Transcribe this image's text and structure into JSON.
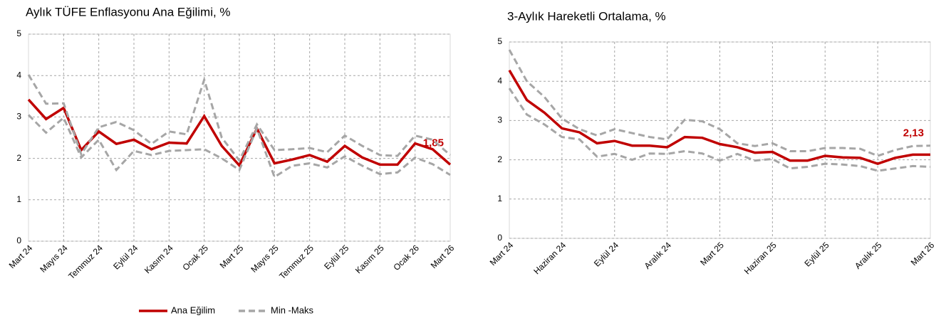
{
  "chart_data": [
    {
      "type": "line",
      "title": "Aylık TÜFE Enflasyonu Ana Eğilimi, %",
      "categories": [
        "Mart 24",
        null,
        "Mayıs 24",
        null,
        "Temmuz 24",
        null,
        "Eylül 24",
        null,
        "Kasım 24",
        null,
        "Ocak 25",
        null,
        "Mart 25",
        null,
        "Mayıs 25",
        null,
        "Temmuz 25",
        null,
        "Eylül 25",
        null,
        "Kasım 25",
        null,
        "Ocak 26",
        null,
        "Mart 26"
      ],
      "ylim": [
        0,
        5
      ],
      "yticks": [
        0,
        1,
        2,
        3,
        4,
        5
      ],
      "grid": true,
      "series": [
        {
          "color": "#c00000",
          "values": [
            3.42,
            2.95,
            3.22,
            2.2,
            2.65,
            2.35,
            2.45,
            2.22,
            2.38,
            2.36,
            3.02,
            2.3,
            1.83,
            2.72,
            1.88,
            1.97,
            2.08,
            1.92,
            2.3,
            2.02,
            1.85,
            1.85,
            2.36,
            2.22,
            1.85
          ],
          "value_labels": [
            null,
            null,
            null,
            null,
            null,
            null,
            null,
            null,
            null,
            null,
            null,
            null,
            null,
            null,
            null,
            null,
            null,
            null,
            null,
            null,
            null,
            null,
            null,
            null,
            "1,85"
          ]
        },
        {
          "color": "#a6a6a6",
          "dashed": true,
          "values": [
            4.02,
            3.32,
            3.33,
            2.1,
            2.75,
            2.88,
            2.68,
            2.35,
            2.65,
            2.58,
            3.9,
            2.5,
            1.95,
            2.82,
            2.2,
            2.22,
            2.25,
            2.15,
            2.55,
            2.3,
            2.08,
            2.06,
            2.55,
            2.45,
            2.08
          ]
        },
        {
          "color": "#a6a6a6",
          "dashed": true,
          "values": [
            3.05,
            2.62,
            2.98,
            2.02,
            2.45,
            1.72,
            2.18,
            2.08,
            2.18,
            2.2,
            2.22,
            2.0,
            1.72,
            2.72,
            1.55,
            1.82,
            1.88,
            1.78,
            2.05,
            1.82,
            1.62,
            1.66,
            2.02,
            1.86,
            1.6
          ]
        }
      ]
    },
    {
      "type": "line",
      "title": "3-Aylık Hareketli Ortalama, %",
      "categories": [
        "Mart 24",
        null,
        null,
        "Haziran 24",
        null,
        null,
        "Eylül 24",
        null,
        null,
        "Aralık 24",
        null,
        null,
        "Mart 25",
        null,
        null,
        "Haziran 25",
        null,
        null,
        "Eylül 25",
        null,
        null,
        "Aralık 25",
        null,
        null,
        "Mart 26"
      ],
      "ylim": [
        0,
        5
      ],
      "yticks": [
        0,
        1,
        2,
        3,
        4,
        5
      ],
      "grid": true,
      "series": [
        {
          "color": "#c00000",
          "values": [
            4.28,
            3.52,
            3.2,
            2.8,
            2.7,
            2.42,
            2.48,
            2.36,
            2.36,
            2.32,
            2.58,
            2.56,
            2.4,
            2.32,
            2.18,
            2.2,
            1.98,
            1.98,
            2.1,
            2.06,
            2.05,
            1.9,
            2.05,
            2.13,
            2.13
          ],
          "value_labels": [
            null,
            null,
            null,
            null,
            null,
            null,
            null,
            null,
            null,
            null,
            null,
            null,
            null,
            null,
            null,
            null,
            null,
            null,
            null,
            null,
            null,
            null,
            null,
            null,
            "2,13"
          ]
        },
        {
          "color": "#a6a6a6",
          "dashed": true,
          "values": [
            4.8,
            4.0,
            3.6,
            3.05,
            2.78,
            2.62,
            2.78,
            2.68,
            2.58,
            2.52,
            3.02,
            2.98,
            2.78,
            2.42,
            2.35,
            2.42,
            2.22,
            2.22,
            2.3,
            2.3,
            2.28,
            2.1,
            2.25,
            2.35,
            2.36
          ]
        },
        {
          "color": "#a6a6a6",
          "dashed": true,
          "values": [
            3.82,
            3.15,
            2.9,
            2.58,
            2.52,
            2.08,
            2.15,
            2.0,
            2.16,
            2.15,
            2.22,
            2.16,
            1.98,
            2.15,
            1.98,
            2.02,
            1.78,
            1.82,
            1.9,
            1.88,
            1.84,
            1.72,
            1.78,
            1.84,
            1.82
          ]
        }
      ]
    }
  ],
  "legend": [
    {
      "label": "Ana Eğilim",
      "color": "#c00000"
    },
    {
      "label": "Min -Maks",
      "color": "#a6a6a6",
      "dashed": true
    }
  ]
}
